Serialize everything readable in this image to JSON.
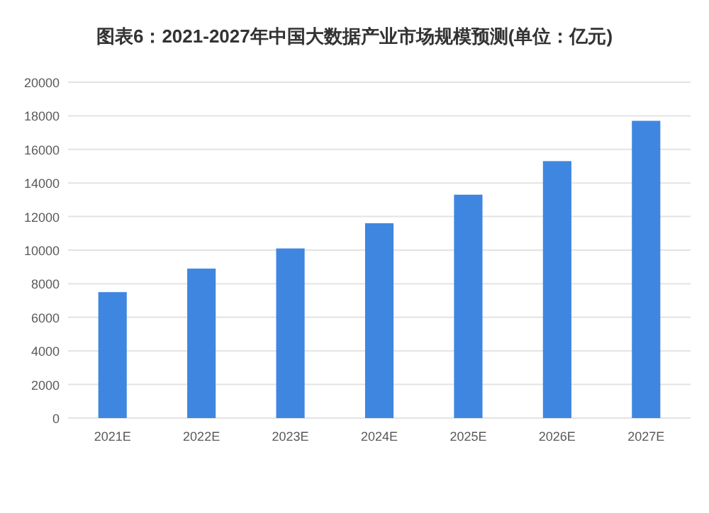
{
  "chart_data": {
    "type": "bar",
    "title": "图表6：2021-2027年中国大数据产业市场规模预测(单位：亿元)",
    "categories": [
      "2021E",
      "2022E",
      "2023E",
      "2024E",
      "2025E",
      "2026E",
      "2027E"
    ],
    "values": [
      7500,
      8900,
      10100,
      11600,
      13300,
      15300,
      17700
    ],
    "color": "#3f86e0",
    "ylim": [
      0,
      20000
    ],
    "yticks": [
      0,
      2000,
      4000,
      6000,
      8000,
      10000,
      12000,
      14000,
      16000,
      18000,
      20000
    ],
    "grid": "y",
    "legend": false
  }
}
